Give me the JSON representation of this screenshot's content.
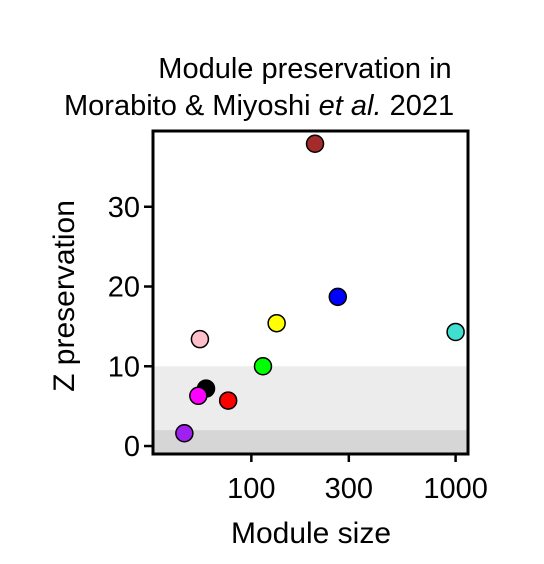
{
  "chart_data": {
    "type": "scatter",
    "title_lines": [
      "Module preservation in",
      "Morabito & Miyoshi ",
      "et al.",
      " 2021"
    ],
    "xlabel": "Module size",
    "ylabel": "Z preservation",
    "x_scale": "log",
    "xlim": [
      33,
      1150
    ],
    "ylim": [
      -1,
      39.5
    ],
    "x_ticks": [
      100,
      300,
      1000
    ],
    "x_tick_labels": [
      "100",
      "300",
      "1000"
    ],
    "y_ticks": [
      0,
      10,
      20,
      30
    ],
    "y_tick_labels": [
      "0",
      "10",
      "20",
      "30"
    ],
    "grid": false,
    "legend": "none",
    "threshold_bands": [
      {
        "from": 2,
        "to": 10,
        "color": "#ececec"
      },
      {
        "from": -1,
        "to": 2,
        "color": "#d6d6d6"
      }
    ],
    "points": [
      {
        "module": "brown",
        "x": 205,
        "y": 37.9,
        "color": "#a52a2a"
      },
      {
        "module": "blue",
        "x": 265,
        "y": 18.7,
        "color": "#0000ff"
      },
      {
        "module": "yellow",
        "x": 133,
        "y": 15.4,
        "color": "#ffff00"
      },
      {
        "module": "turquoise",
        "x": 1000,
        "y": 14.3,
        "color": "#40e0d0"
      },
      {
        "module": "pink",
        "x": 56,
        "y": 13.4,
        "color": "#ffc0cb"
      },
      {
        "module": "green",
        "x": 114,
        "y": 10.0,
        "color": "#00ff00"
      },
      {
        "module": "black",
        "x": 60,
        "y": 7.2,
        "color": "#000000"
      },
      {
        "module": "magenta",
        "x": 55,
        "y": 6.3,
        "color": "#ff00ff"
      },
      {
        "module": "red",
        "x": 77,
        "y": 5.7,
        "color": "#ff0000"
      },
      {
        "module": "purple",
        "x": 47,
        "y": 1.6,
        "color": "#a020f0"
      }
    ]
  }
}
